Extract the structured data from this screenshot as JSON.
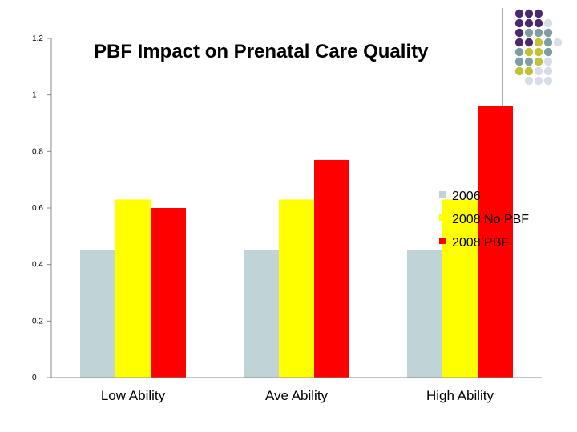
{
  "chart_data": {
    "type": "bar",
    "title": "PBF Impact on Prenatal Care Quality",
    "xlabel": "",
    "ylabel": "",
    "categories": [
      "Low Ability",
      "Ave Ability",
      "High Ability"
    ],
    "series": [
      {
        "name": "2006",
        "color": "#c0d3d7",
        "values": [
          0.45,
          0.45,
          0.45
        ]
      },
      {
        "name": "2008 No PBF",
        "color": "#ffff00",
        "values": [
          0.63,
          0.63,
          0.63
        ]
      },
      {
        "name": "2008 PBF",
        "color": "#ff0000",
        "values": [
          0.6,
          0.77,
          0.96
        ]
      }
    ],
    "ylim": [
      0,
      1.2
    ],
    "yticks": [
      0,
      0.2,
      0.4,
      0.6,
      0.8,
      1,
      1.2
    ],
    "ytick_labels": [
      "0",
      "0.2",
      "0.4",
      "0.6",
      "0.8",
      "1",
      "1.2"
    ],
    "grid": false,
    "legend_position": "right"
  },
  "decoration": {
    "dot_colors": [
      "#4b2a6b",
      "#7f9ea3",
      "#c2c23a",
      "#d8dde8"
    ]
  }
}
